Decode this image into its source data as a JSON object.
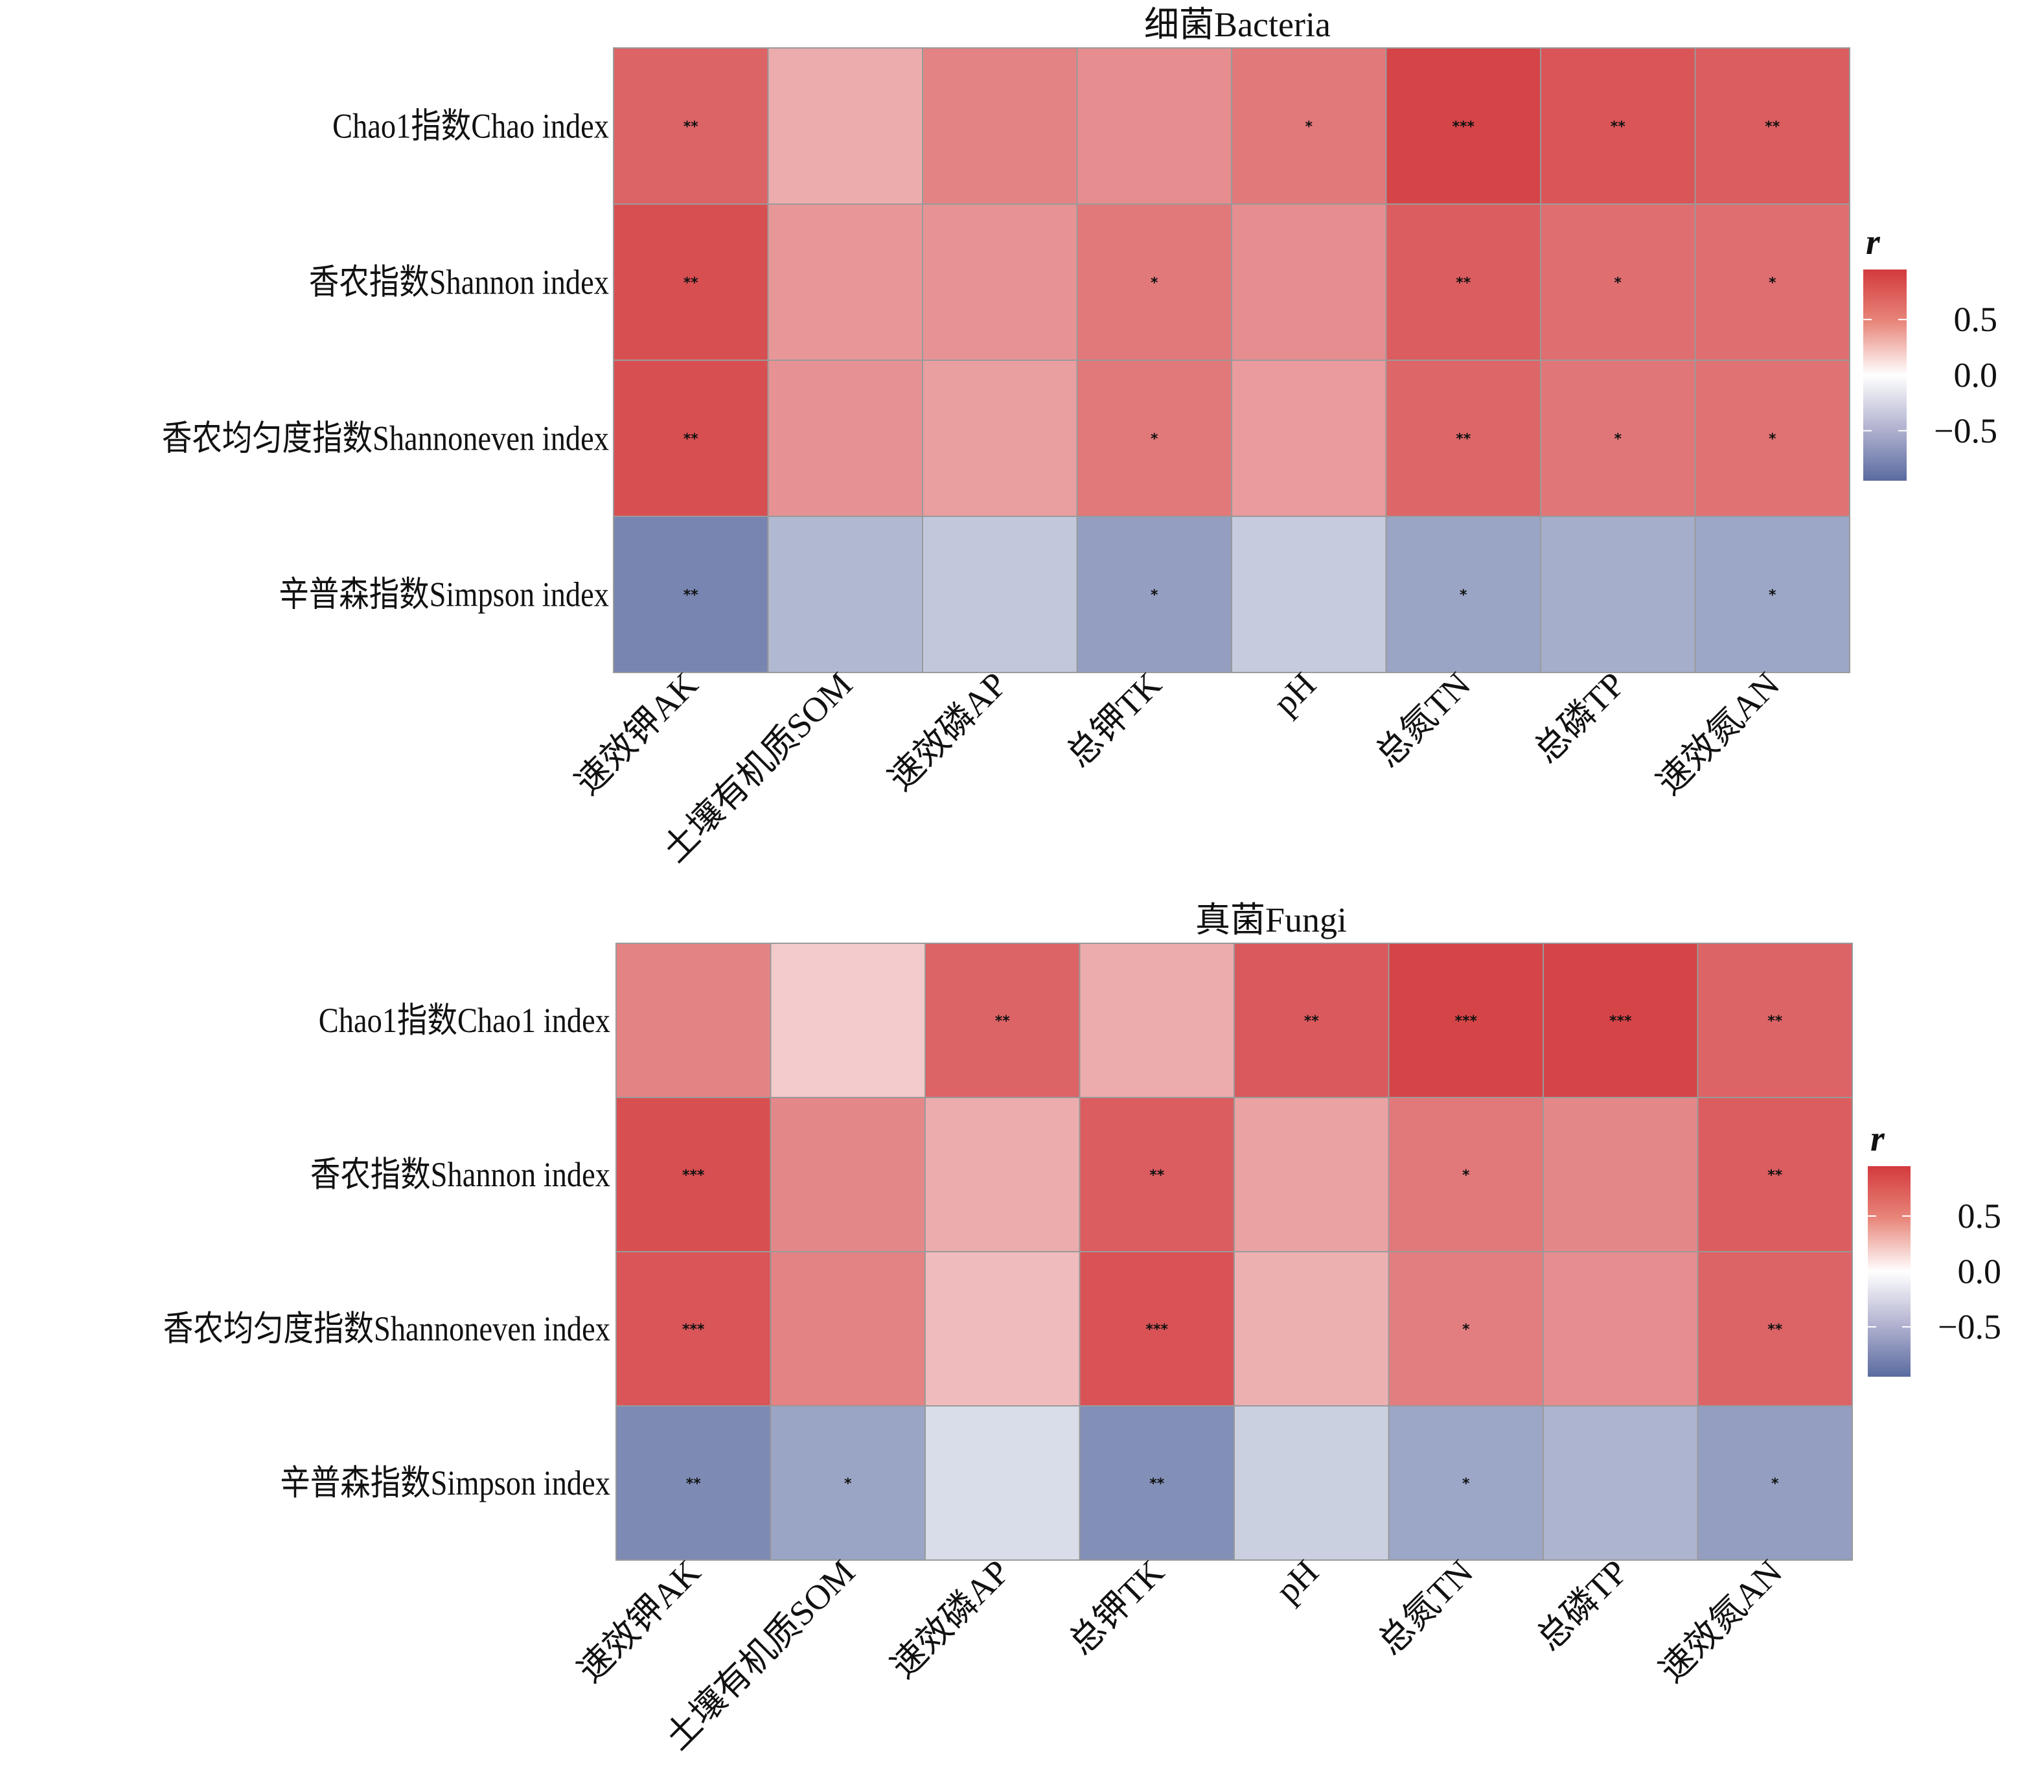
{
  "chart_data": [
    {
      "type": "heatmap",
      "title": "细菌Bacteria",
      "rows": [
        "Chao1指数Chao index",
        "香农指数Shannon index",
        "香农均匀度指数Shannoneven index",
        "辛普森指数Simpson index"
      ],
      "columns": [
        "速效钾AK",
        "土壤有机质SOM",
        "速效磷AP",
        "总钾TK",
        "pH",
        "总氮TN",
        "总磷TP",
        "速效氮AN"
      ],
      "values": [
        [
          0.75,
          0.4,
          0.6,
          0.55,
          0.65,
          0.9,
          0.82,
          0.78
        ],
        [
          0.85,
          0.5,
          0.52,
          0.65,
          0.55,
          0.78,
          0.7,
          0.7
        ],
        [
          0.85,
          0.53,
          0.47,
          0.65,
          0.48,
          0.74,
          0.66,
          0.68
        ],
        [
          -0.78,
          -0.45,
          -0.35,
          -0.62,
          -0.33,
          -0.58,
          -0.52,
          -0.57
        ]
      ],
      "significance": [
        [
          "**",
          "",
          "",
          "",
          "*",
          "***",
          "**",
          "**"
        ],
        [
          "**",
          "",
          "",
          "*",
          "",
          "**",
          "*",
          "*"
        ],
        [
          "**",
          "",
          "",
          "*",
          "",
          "**",
          "*",
          "*"
        ],
        [
          "**",
          "",
          "",
          "*",
          "",
          "*",
          "",
          "*"
        ]
      ],
      "legend": {
        "title": "r",
        "ticks": [
          0.5,
          0.0,
          -0.5
        ],
        "tick_labels": [
          "0.5",
          "0.0",
          "−0.5"
        ],
        "range": [
          -1,
          1
        ],
        "placement": "right"
      }
    },
    {
      "type": "heatmap",
      "title": "真菌Fungi",
      "rows": [
        "Chao1指数Chao1 index",
        "香农指数Shannon index",
        "香农均匀度指数Shannoneven index",
        "辛普森指数Simpson index"
      ],
      "columns": [
        "速效钾AK",
        "土壤有机质SOM",
        "速效磷AP",
        "总钾TK",
        "pH",
        "总氮TN",
        "总磷TP",
        "速效氮AN"
      ],
      "values": [
        [
          0.6,
          0.25,
          0.75,
          0.4,
          0.8,
          0.9,
          0.9,
          0.75
        ],
        [
          0.85,
          0.58,
          0.4,
          0.78,
          0.45,
          0.65,
          0.58,
          0.78
        ],
        [
          0.82,
          0.6,
          0.33,
          0.83,
          0.38,
          0.62,
          0.55,
          0.75
        ],
        [
          -0.75,
          -0.58,
          -0.22,
          -0.72,
          -0.3,
          -0.57,
          -0.48,
          -0.62
        ]
      ],
      "significance": [
        [
          "",
          "",
          "**",
          "",
          "**",
          "***",
          "***",
          "**"
        ],
        [
          "***",
          "",
          "",
          "**",
          "",
          "*",
          "",
          "**"
        ],
        [
          "***",
          "",
          "",
          "***",
          "",
          "*",
          "",
          "**"
        ],
        [
          "**",
          "*",
          "",
          "**",
          "",
          "*",
          "",
          "*"
        ]
      ],
      "legend": {
        "title": "r",
        "ticks": [
          0.5,
          0.0,
          -0.5
        ],
        "tick_labels": [
          "0.5",
          "0.0",
          "−0.5"
        ],
        "range": [
          -1,
          1
        ],
        "placement": "right"
      }
    }
  ],
  "colors": {
    "positive": "#d33a3d",
    "neutral": "#ffffff",
    "negative": "#5a6ba0",
    "grid": "#9a9a9a",
    "text": "#111111"
  }
}
